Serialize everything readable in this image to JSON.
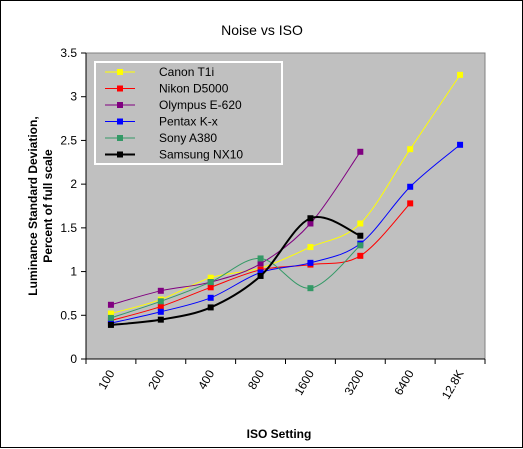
{
  "chart_data": {
    "type": "line",
    "title": "Noise vs ISO",
    "xlabel": "ISO Setting",
    "ylabel_line1": "Luminance Standard Deviation,",
    "ylabel_line2": "Percent of full scale",
    "categories": [
      "100",
      "200",
      "400",
      "800",
      "1600",
      "3200",
      "6400",
      "12.8K"
    ],
    "ylim": [
      0,
      3.5
    ],
    "yticks": [
      "0",
      "0.5",
      "1",
      "1.5",
      "2",
      "2.5",
      "3",
      "3.5"
    ],
    "plot_background": "#c0c0c0",
    "gridlines": false,
    "legend_position": "top-left inside plot",
    "series": [
      {
        "name": "Canon T1i",
        "color": "#ffff00",
        "values": [
          0.52,
          0.68,
          0.93,
          1.04,
          1.28,
          1.55,
          2.4,
          3.25
        ]
      },
      {
        "name": "Nikon D5000",
        "color": "#ff0000",
        "values": [
          0.44,
          0.6,
          0.82,
          1.02,
          1.08,
          1.18,
          1.78,
          null
        ]
      },
      {
        "name": "Olympus E-620",
        "color": "#800080",
        "values": [
          0.62,
          0.78,
          0.88,
          1.09,
          1.55,
          2.37,
          null,
          null
        ]
      },
      {
        "name": "Pentax K-x",
        "color": "#0000ff",
        "values": [
          0.41,
          0.54,
          0.7,
          0.99,
          1.1,
          1.32,
          1.97,
          2.45
        ]
      },
      {
        "name": "Sony A380",
        "color": "#339966",
        "values": [
          0.47,
          0.66,
          0.88,
          1.15,
          0.81,
          1.3,
          null,
          null
        ]
      },
      {
        "name": "Samsung NX10",
        "color": "#000000",
        "values": [
          0.39,
          0.45,
          0.59,
          0.95,
          1.61,
          1.41,
          null,
          null
        ]
      }
    ]
  }
}
